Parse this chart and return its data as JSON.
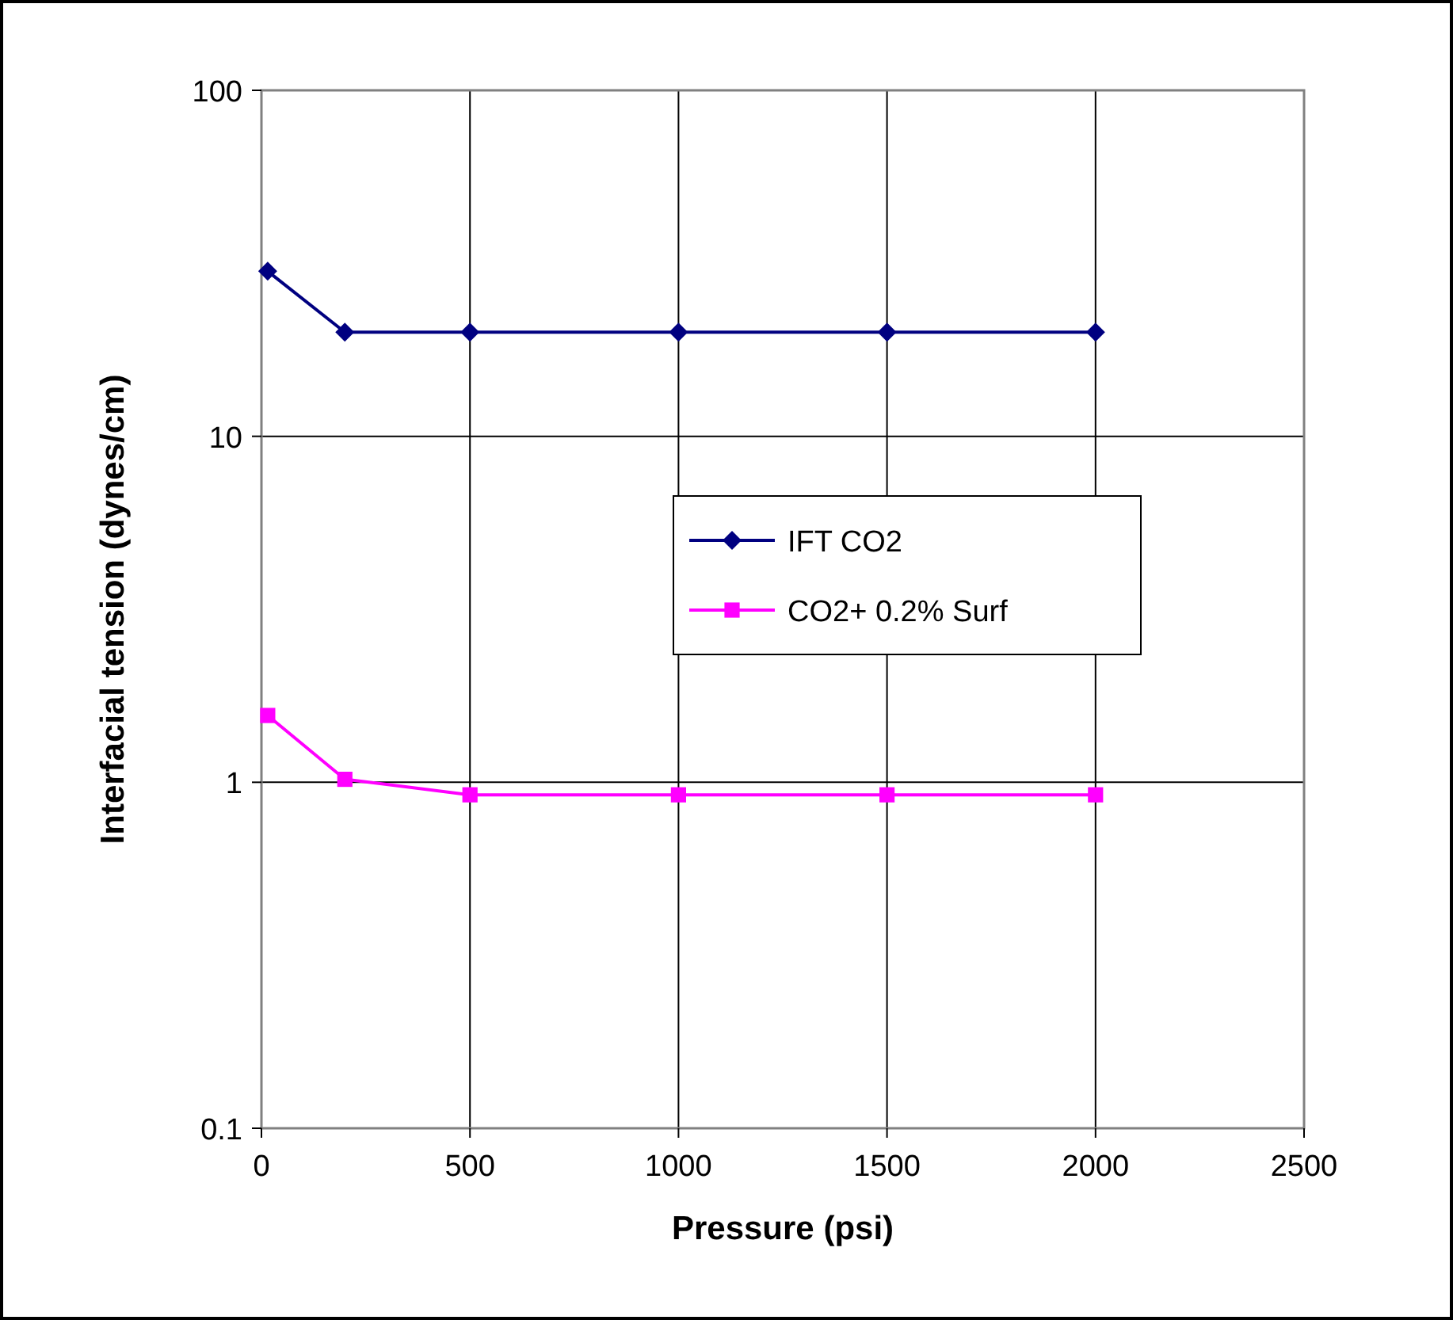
{
  "chart_data": {
    "type": "line",
    "xlabel": "Pressure (psi)",
    "ylabel": "Interfacial tension (dynes/cm)",
    "x": [
      15,
      200,
      500,
      1000,
      1500,
      2000
    ],
    "series": [
      {
        "name": "IFT CO2",
        "color": "#000080",
        "marker": "diamond",
        "values": [
          30,
          20,
          20,
          20,
          20,
          20
        ]
      },
      {
        "name": "CO2+ 0.2% Surf",
        "color": "#ff00ff",
        "marker": "square",
        "values": [
          1.56,
          1.02,
          0.92,
          0.92,
          0.92,
          0.92
        ]
      }
    ],
    "xlim": [
      0,
      2500
    ],
    "xticks": [
      0,
      500,
      1000,
      1500,
      2000,
      2500
    ],
    "ylim": [
      0.1,
      100
    ],
    "yticks": [
      0.1,
      1,
      10,
      100
    ],
    "log": "y",
    "grid": true,
    "legend": "right"
  }
}
